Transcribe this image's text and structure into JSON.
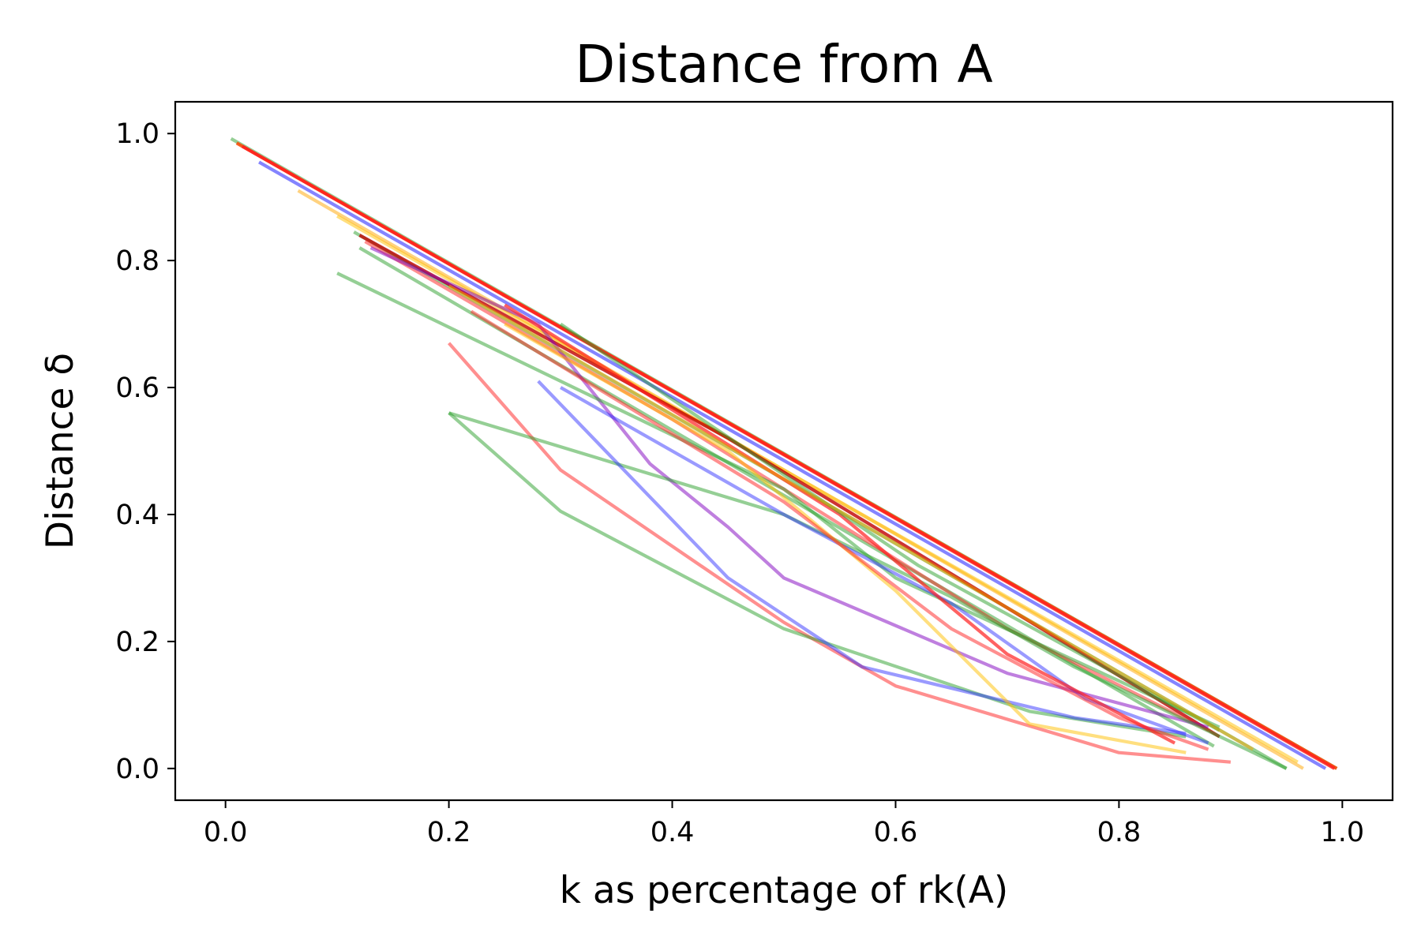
{
  "colors": {
    "green": "#2ca02c",
    "red": "#ff2020",
    "orange": "#ffa500",
    "blue": "#1f1fff",
    "darkred": "#c00000",
    "orangered": "#ff4500",
    "gold": "#ffc000",
    "purple": "#8000c0"
  },
  "chart_data": {
    "type": "line",
    "title": "Distance from A",
    "xlabel": "k as percentage of rk(A)",
    "ylabel": "Distance δ",
    "xlim": [
      -0.045,
      1.045
    ],
    "ylim": [
      -0.05,
      1.05
    ],
    "xticks": [
      "0.0",
      "0.2",
      "0.4",
      "0.6",
      "0.8",
      "1.0"
    ],
    "yticks": [
      "0.0",
      "0.2",
      "0.4",
      "0.6",
      "0.8",
      "1.0"
    ],
    "grid": false,
    "legend": "none",
    "series": [
      {
        "color": "green",
        "alpha": 0.5,
        "x": [
          0.005,
          0.995
        ],
        "y": [
          0.992,
          0.0
        ]
      },
      {
        "color": "orangered",
        "alpha": 0.85,
        "x": [
          0.01,
          0.995
        ],
        "y": [
          0.985,
          0.0
        ]
      },
      {
        "color": "red",
        "alpha": 0.85,
        "x": [
          0.015,
          0.993
        ],
        "y": [
          0.98,
          0.0
        ]
      },
      {
        "color": "blue",
        "alpha": 0.55,
        "x": [
          0.03,
          0.985
        ],
        "y": [
          0.955,
          0.0
        ]
      },
      {
        "color": "orange",
        "alpha": 0.5,
        "x": [
          0.065,
          0.965
        ],
        "y": [
          0.91,
          0.0
        ]
      },
      {
        "color": "gold",
        "alpha": 0.5,
        "x": [
          0.1,
          0.96
        ],
        "y": [
          0.87,
          0.01
        ]
      },
      {
        "color": "green",
        "alpha": 0.5,
        "x": [
          0.115,
          0.95
        ],
        "y": [
          0.845,
          0.0
        ]
      },
      {
        "color": "darkred",
        "alpha": 0.8,
        "x": [
          0.12,
          0.45,
          0.89
        ],
        "y": [
          0.84,
          0.52,
          0.05
        ]
      },
      {
        "color": "green",
        "alpha": 0.5,
        "x": [
          0.12,
          0.885
        ],
        "y": [
          0.82,
          0.035
        ]
      },
      {
        "color": "red",
        "alpha": 0.5,
        "x": [
          0.125,
          0.4,
          0.7,
          0.88
        ],
        "y": [
          0.83,
          0.55,
          0.22,
          0.06
        ]
      },
      {
        "color": "purple",
        "alpha": 0.5,
        "x": [
          0.13,
          0.28,
          0.38,
          0.45,
          0.5,
          0.7,
          0.88
        ],
        "y": [
          0.82,
          0.7,
          0.48,
          0.38,
          0.3,
          0.15,
          0.065
        ]
      },
      {
        "color": "green",
        "alpha": 0.5,
        "x": [
          0.1,
          0.5,
          0.6,
          0.89
        ],
        "y": [
          0.78,
          0.44,
          0.3,
          0.065
        ]
      },
      {
        "color": "red",
        "alpha": 0.5,
        "x": [
          0.2,
          0.3,
          0.5,
          0.6,
          0.8,
          0.9
        ],
        "y": [
          0.67,
          0.47,
          0.23,
          0.13,
          0.025,
          0.01
        ]
      },
      {
        "color": "green",
        "alpha": 0.5,
        "x": [
          0.2,
          0.3,
          0.5,
          0.72,
          0.86
        ],
        "y": [
          0.56,
          0.405,
          0.22,
          0.09,
          0.05
        ]
      },
      {
        "color": "green",
        "alpha": 0.5,
        "x": [
          0.2,
          0.5,
          0.65,
          0.76,
          0.95
        ],
        "y": [
          0.56,
          0.4,
          0.27,
          0.16,
          0.0
        ]
      },
      {
        "color": "blue",
        "alpha": 0.45,
        "x": [
          0.28,
          0.45,
          0.57,
          0.76,
          0.86
        ],
        "y": [
          0.61,
          0.3,
          0.16,
          0.08,
          0.055
        ]
      },
      {
        "color": "blue",
        "alpha": 0.45,
        "x": [
          0.3,
          0.5,
          0.65,
          0.77,
          0.88
        ],
        "y": [
          0.6,
          0.4,
          0.26,
          0.11,
          0.04
        ]
      },
      {
        "color": "gold",
        "alpha": 0.5,
        "x": [
          0.25,
          0.45,
          0.6,
          0.72,
          0.86
        ],
        "y": [
          0.7,
          0.5,
          0.28,
          0.07,
          0.025
        ]
      },
      {
        "color": "red",
        "alpha": 0.5,
        "x": [
          0.22,
          0.5,
          0.65,
          0.8,
          0.88
        ],
        "y": [
          0.72,
          0.42,
          0.22,
          0.08,
          0.03
        ]
      },
      {
        "color": "red",
        "alpha": 0.7,
        "x": [
          0.25,
          0.55,
          0.7,
          0.85
        ],
        "y": [
          0.73,
          0.4,
          0.18,
          0.04
        ]
      },
      {
        "color": "green",
        "alpha": 0.5,
        "x": [
          0.3,
          0.62,
          0.89
        ],
        "y": [
          0.7,
          0.32,
          0.06
        ]
      },
      {
        "color": "orange",
        "alpha": 0.5,
        "x": [
          0.2,
          0.92
        ],
        "y": [
          0.76,
          0.03
        ]
      }
    ]
  }
}
